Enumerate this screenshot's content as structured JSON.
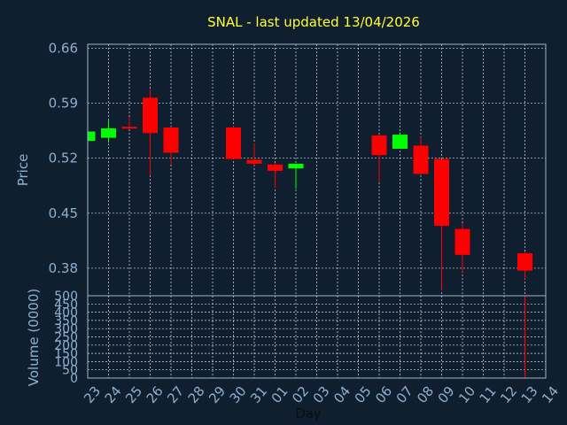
{
  "chart_data": {
    "type": "candlestick",
    "title": "SNAL - last updated 13/04/2026",
    "xlabel": "Day",
    "ylabel": "Price",
    "volume_label": "Volume (0000)",
    "ylim": [
      0.345,
      0.665
    ],
    "y_ticks": [
      "0.66",
      "0.59",
      "0.52",
      "0.45",
      "0.38"
    ],
    "y_tick_values": [
      0.66,
      0.59,
      0.52,
      0.45,
      0.38
    ],
    "volume_ylim": [
      0,
      500
    ],
    "volume_ticks": [
      "500",
      "450",
      "400",
      "350",
      "300",
      "250",
      "200",
      "150",
      "100",
      "50",
      "0"
    ],
    "volume_tick_values": [
      500,
      450,
      400,
      350,
      300,
      250,
      200,
      150,
      100,
      50,
      0
    ],
    "x_ticks": [
      "23",
      "24",
      "25",
      "26",
      "27",
      "28",
      "29",
      "30",
      "31",
      "01",
      "02",
      "03",
      "04",
      "05",
      "06",
      "07",
      "08",
      "09",
      "10",
      "11",
      "12",
      "13",
      "14"
    ],
    "grid": true,
    "up_color": "#00ff00",
    "down_color": "#ff0000",
    "candles": [
      {
        "day": "23",
        "open": 0.542,
        "close": 0.554,
        "high": 0.556,
        "low": 0.54
      },
      {
        "day": "24",
        "open": 0.546,
        "close": 0.558,
        "high": 0.57,
        "low": 0.54
      },
      {
        "day": "25",
        "open": 0.56,
        "close": 0.558,
        "high": 0.572,
        "low": 0.557
      },
      {
        "day": "26",
        "open": 0.597,
        "close": 0.552,
        "high": 0.608,
        "low": 0.498
      },
      {
        "day": "27",
        "open": 0.559,
        "close": 0.527,
        "high": 0.56,
        "low": 0.512
      },
      {
        "day": "30",
        "open": 0.559,
        "close": 0.519,
        "high": 0.561,
        "low": 0.519
      },
      {
        "day": "31",
        "open": 0.518,
        "close": 0.513,
        "high": 0.539,
        "low": 0.511
      },
      {
        "day": "01",
        "open": 0.512,
        "close": 0.504,
        "high": 0.514,
        "low": 0.482
      },
      {
        "day": "02",
        "open": 0.507,
        "close": 0.513,
        "high": 0.513,
        "low": 0.481
      },
      {
        "day": "06",
        "open": 0.549,
        "close": 0.524,
        "high": 0.55,
        "low": 0.49
      },
      {
        "day": "07",
        "open": 0.532,
        "close": 0.55,
        "high": 0.553,
        "low": 0.532
      },
      {
        "day": "08",
        "open": 0.536,
        "close": 0.5,
        "high": 0.547,
        "low": 0.499
      },
      {
        "day": "09",
        "open": 0.519,
        "close": 0.434,
        "high": 0.519,
        "low": 0.352
      },
      {
        "day": "10",
        "open": 0.43,
        "close": 0.397,
        "high": 0.437,
        "low": 0.375
      },
      {
        "day": "13",
        "open": 0.399,
        "close": 0.377,
        "high": 0.401,
        "low": 0.366
      }
    ],
    "volume": [
      {
        "day": "13",
        "value": 500
      }
    ]
  }
}
